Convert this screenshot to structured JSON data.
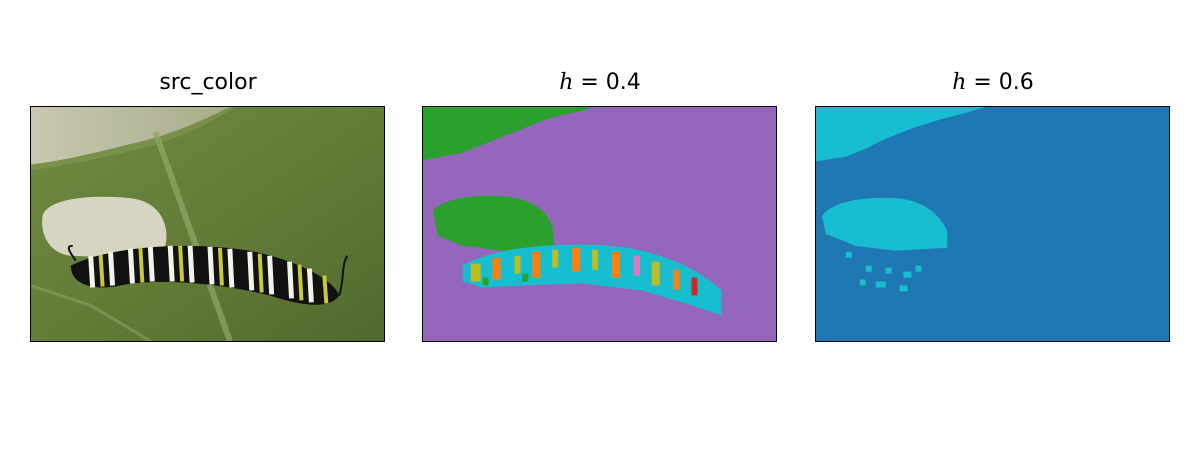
{
  "panels": [
    {
      "title": "src_color",
      "kind": "photo"
    },
    {
      "title_var": "h",
      "title_eq": " = ",
      "title_val": "0.4",
      "kind": "segmentation"
    },
    {
      "title_var": "h",
      "title_eq": " = ",
      "title_val": "0.6",
      "kind": "segmentation"
    }
  ],
  "colors": {
    "seg_purple": "#9467bd",
    "seg_green": "#2ca02c",
    "seg_cyan": "#17becf",
    "seg_blue": "#1f77b4",
    "seg_orange": "#ff7f0e",
    "seg_olive": "#bcbd22",
    "seg_pink": "#e377c2",
    "seg_red": "#d62728"
  }
}
